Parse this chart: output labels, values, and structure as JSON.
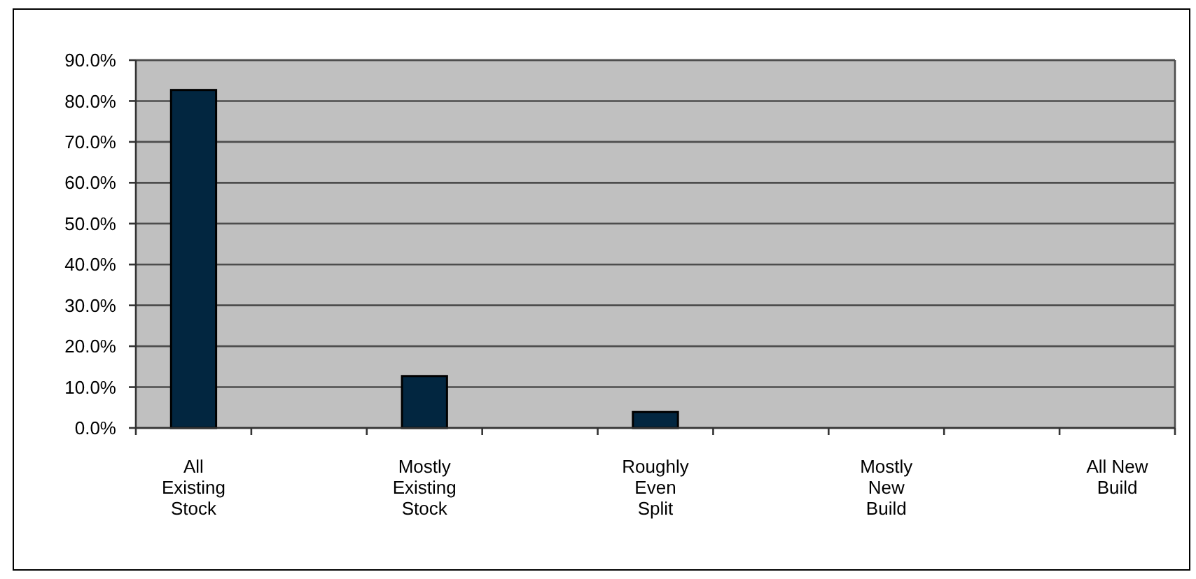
{
  "chart_data": {
    "type": "bar",
    "categories": [
      "All Existing Stock",
      null,
      "Mostly Existing Stock",
      null,
      "Roughly Even Split",
      null,
      "Mostly New Build",
      null,
      "All New Build"
    ],
    "values": [
      82.7,
      null,
      12.7,
      null,
      3.9,
      null,
      0,
      null,
      0
    ],
    "color": "#022640",
    "ylim": [
      0,
      90
    ],
    "yticks": [
      {
        "value": 0,
        "label": "0.0%"
      },
      {
        "value": 10,
        "label": "10.0%"
      },
      {
        "value": 20,
        "label": "20.0%"
      },
      {
        "value": 30,
        "label": "30.0%"
      },
      {
        "value": 40,
        "label": "40.0%"
      },
      {
        "value": 50,
        "label": "50.0%"
      },
      {
        "value": 60,
        "label": "60.0%"
      },
      {
        "value": 70,
        "label": "70.0%"
      },
      {
        "value": 80,
        "label": "80.0%"
      },
      {
        "value": 90,
        "label": "90.0%"
      }
    ],
    "grid": "y"
  }
}
